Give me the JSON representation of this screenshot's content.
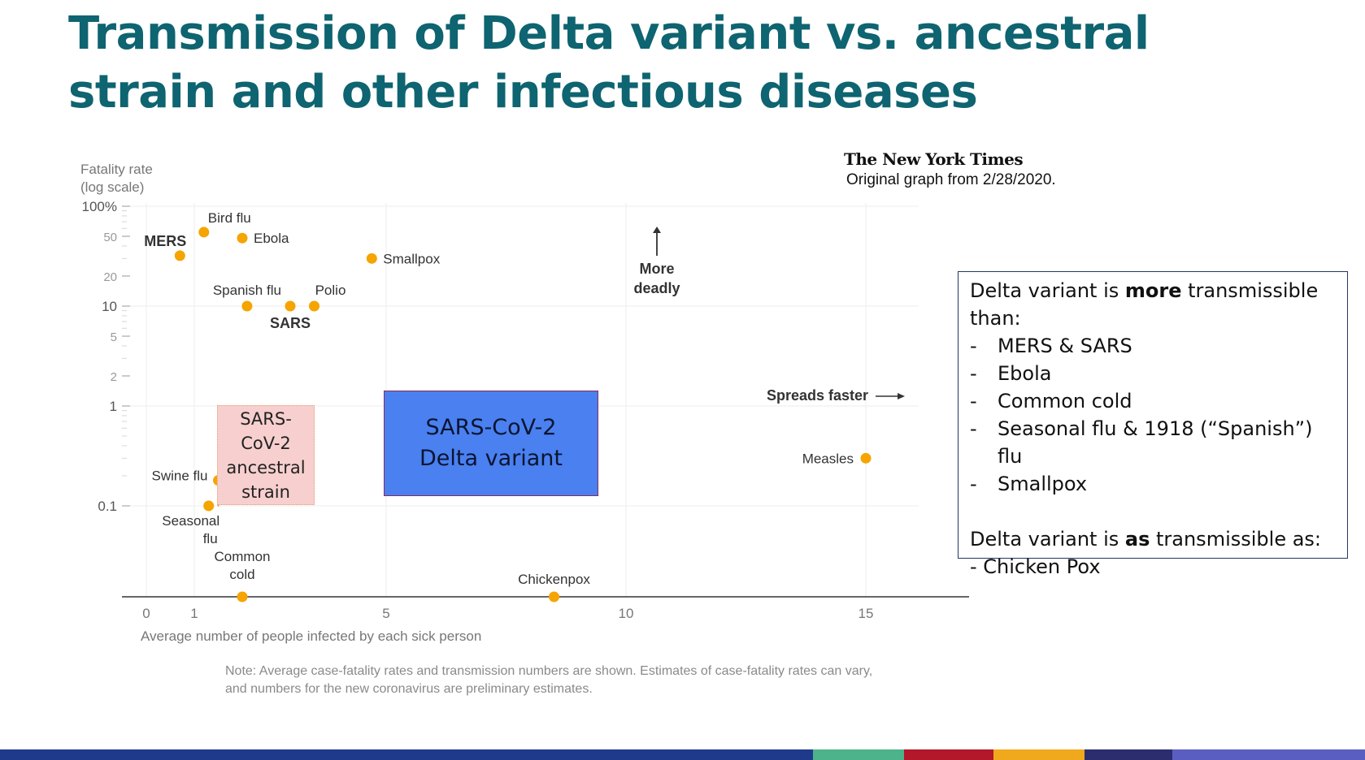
{
  "slide": {
    "title": "Transmission of Delta variant vs. ancestral strain and other infectious diseases",
    "source_logo": "The New York Times",
    "source_note": "Original graph from 2/28/2020.",
    "note": "Note: Average case-fatality rates and transmission numbers are shown. Estimates of case-fatality rates can vary, and numbers for the new coronavirus are preliminary estimates.",
    "callout": {
      "intro_prefix": "Delta variant is ",
      "intro_bold": "more",
      "intro_suffix": " transmissible than:",
      "items": [
        "MERS & SARS",
        "Ebola",
        "Common cold",
        "Seasonal flu & 1918 (“Spanish”) flu",
        "Smallpox"
      ],
      "second_prefix": "Delta variant is ",
      "second_bold": "as",
      "second_suffix": " transmissible as:",
      "second_item": "- Chicken Pox"
    },
    "ancestral_box": [
      "SARS-",
      "CoV-2",
      "ancestral",
      "strain"
    ],
    "delta_box": [
      "SARS-CoV-2",
      "Delta variant"
    ],
    "footer_colors": [
      "#1f3a8a",
      "#1f3a8a",
      "#4cb38a",
      "#b3172a",
      "#f0a81c",
      "#2b2d6e",
      "#5a5ec0"
    ],
    "accent_color": "#0e6470",
    "point_color": "#f5a400"
  },
  "chart_data": {
    "type": "scatter",
    "ylabel_lines": [
      "Fatality rate",
      "(log scale)"
    ],
    "xlabel": "Average number of people infected by each sick person",
    "y_scale": "log",
    "xlim": [
      -0.5,
      17.7
    ],
    "x_ticks": [
      0,
      1,
      5,
      10,
      15
    ],
    "y_ticks": [
      {
        "value": 100,
        "label": "100%"
      },
      {
        "value": 50,
        "label": "50"
      },
      {
        "value": 20,
        "label": "20"
      },
      {
        "value": 10,
        "label": "10"
      },
      {
        "value": 5,
        "label": "5"
      },
      {
        "value": 2,
        "label": "2"
      },
      {
        "value": 1,
        "label": "1"
      },
      {
        "value": 0.1,
        "label": "0.1"
      }
    ],
    "annotations": {
      "more_deadly": [
        "More",
        "deadly"
      ],
      "spreads_faster": "Spreads faster"
    },
    "points": [
      {
        "name": "Bird flu",
        "x": 1.2,
        "y": 55
      },
      {
        "name": "MERS",
        "x": 0.7,
        "y": 32,
        "bold": true
      },
      {
        "name": "Ebola",
        "x": 2.0,
        "y": 48
      },
      {
        "name": "Smallpox",
        "x": 4.7,
        "y": 30
      },
      {
        "name": "Spanish flu",
        "x": 2.1,
        "y": 10
      },
      {
        "name": "SARS",
        "x": 3.0,
        "y": 10,
        "bold": true
      },
      {
        "name": "Polio",
        "x": 3.5,
        "y": 10
      },
      {
        "name": "Swine flu",
        "x": 1.5,
        "y": 0.18
      },
      {
        "name": "Seasonal flu",
        "x": 1.3,
        "y": 0.1
      },
      {
        "name": "Measles",
        "x": 15,
        "y": 0.3
      },
      {
        "name": "Common cold",
        "x": 2.0,
        "y": null
      },
      {
        "name": "Chickenpox",
        "x": 8.5,
        "y": null
      }
    ]
  }
}
